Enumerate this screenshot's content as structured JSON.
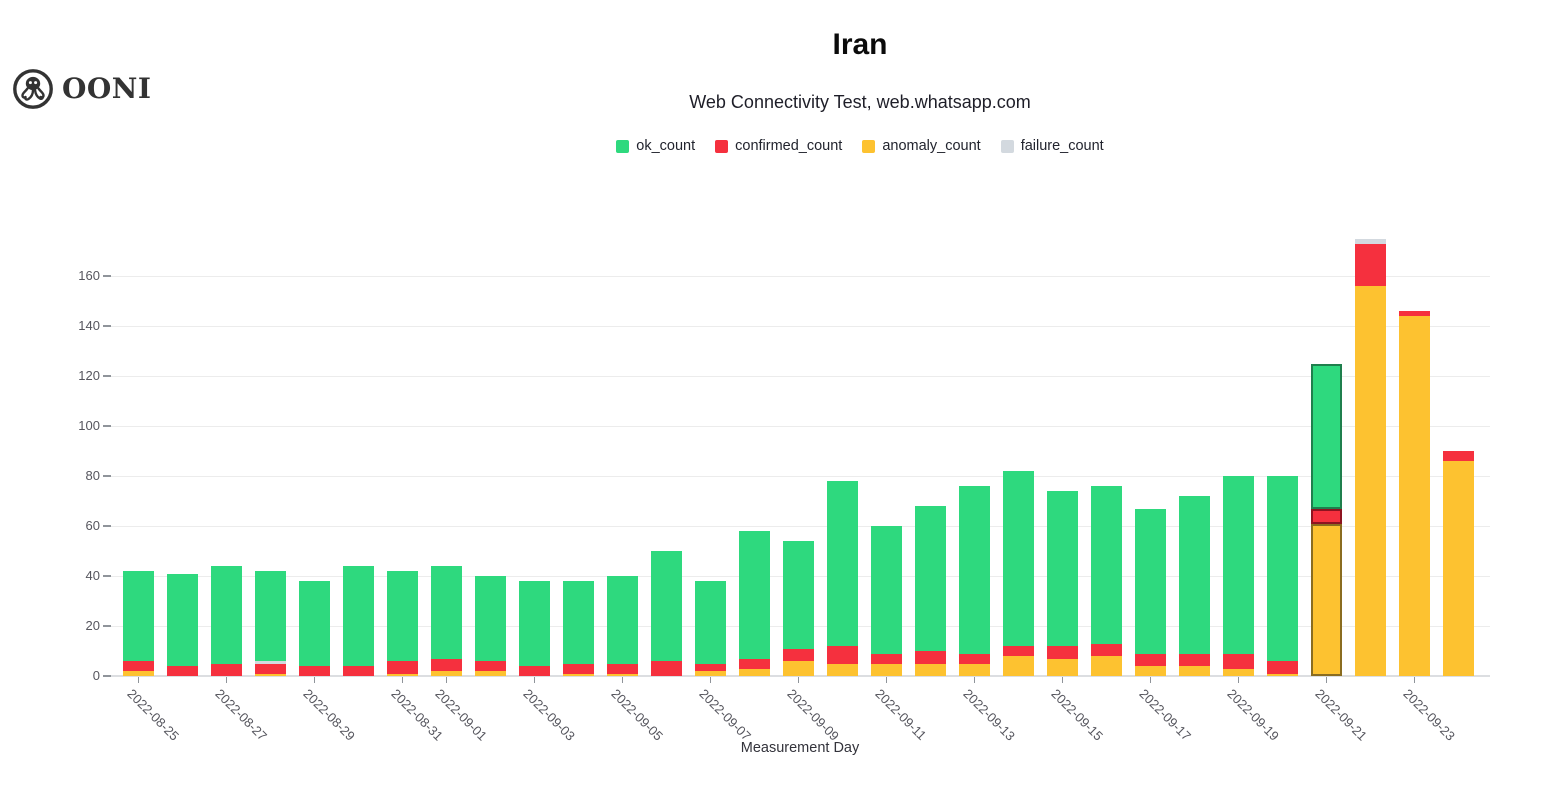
{
  "header": {
    "brand": "OONI",
    "title": "Iran",
    "subtitle": "Web Connectivity Test, web.whatsapp.com"
  },
  "chart_data": {
    "type": "bar",
    "stacked": true,
    "title": "Iran",
    "subtitle": "Web Connectivity Test, web.whatsapp.com",
    "xlabel": "Measurement Day",
    "ylabel": "",
    "ylim": [
      0,
      180
    ],
    "yticks": [
      0,
      20,
      40,
      60,
      80,
      100,
      120,
      140,
      160
    ],
    "grid": true,
    "legend_position": "top",
    "categories": [
      "2022-08-25",
      "2022-08-26",
      "2022-08-27",
      "2022-08-28",
      "2022-08-29",
      "2022-08-30",
      "2022-08-31",
      "2022-09-01",
      "2022-09-02",
      "2022-09-03",
      "2022-09-04",
      "2022-09-05",
      "2022-09-06",
      "2022-09-07",
      "2022-09-08",
      "2022-09-09",
      "2022-09-10",
      "2022-09-11",
      "2022-09-12",
      "2022-09-13",
      "2022-09-14",
      "2022-09-15",
      "2022-09-16",
      "2022-09-17",
      "2022-09-18",
      "2022-09-19",
      "2022-09-20",
      "2022-09-21",
      "2022-09-22",
      "2022-09-23",
      "2022-09-24"
    ],
    "x_ticks": [
      {
        "index": 0,
        "label": "2022-08-25"
      },
      {
        "index": 2,
        "label": "2022-08-27"
      },
      {
        "index": 4,
        "label": "2022-08-29"
      },
      {
        "index": 6,
        "label": "2022-08-31"
      },
      {
        "index": 7,
        "label": "2022-09-01"
      },
      {
        "index": 9,
        "label": "2022-09-03"
      },
      {
        "index": 11,
        "label": "2022-09-05"
      },
      {
        "index": 13,
        "label": "2022-09-07"
      },
      {
        "index": 15,
        "label": "2022-09-09"
      },
      {
        "index": 17,
        "label": "2022-09-11"
      },
      {
        "index": 19,
        "label": "2022-09-13"
      },
      {
        "index": 21,
        "label": "2022-09-15"
      },
      {
        "index": 23,
        "label": "2022-09-17"
      },
      {
        "index": 25,
        "label": "2022-09-19"
      },
      {
        "index": 27,
        "label": "2022-09-21"
      },
      {
        "index": 29,
        "label": "2022-09-23"
      }
    ],
    "stack_order": [
      "anomaly_count",
      "confirmed_count",
      "failure_count",
      "ok_count"
    ],
    "series": [
      {
        "name": "ok_count",
        "color": "#2ed97e",
        "values": [
          36,
          37,
          39,
          36,
          34,
          40,
          36,
          37,
          34,
          34,
          33,
          35,
          44,
          33,
          51,
          43,
          66,
          51,
          58,
          67,
          70,
          62,
          63,
          58,
          63,
          71,
          74,
          58,
          0,
          0,
          0
        ]
      },
      {
        "name": "confirmed_count",
        "color": "#f5303e",
        "values": [
          4,
          4,
          5,
          4,
          4,
          4,
          5,
          5,
          4,
          4,
          4,
          4,
          6,
          3,
          4,
          5,
          7,
          4,
          5,
          4,
          4,
          5,
          5,
          5,
          5,
          6,
          5,
          6,
          17,
          2,
          4
        ]
      },
      {
        "name": "anomaly_count",
        "color": "#fdc230",
        "values": [
          2,
          0,
          0,
          1,
          0,
          0,
          1,
          2,
          2,
          0,
          1,
          1,
          0,
          2,
          3,
          6,
          5,
          5,
          5,
          5,
          8,
          7,
          8,
          4,
          4,
          3,
          1,
          61,
          156,
          144,
          86
        ]
      },
      {
        "name": "failure_count",
        "color": "#d3d9df",
        "values": [
          0,
          0,
          0,
          1,
          0,
          0,
          0,
          0,
          0,
          0,
          0,
          0,
          0,
          0,
          0,
          0,
          0,
          0,
          0,
          0,
          0,
          0,
          0,
          0,
          0,
          0,
          0,
          0,
          2,
          0,
          0
        ]
      }
    ],
    "highlighted_category": "2022-09-21",
    "highlighted_index": 27,
    "highlight_borders": {
      "ok_count": "#1f7f4d",
      "confirmed_count": "#8d1420",
      "anomaly_count": "#8a6c20",
      "failure_count": "#7c848b"
    }
  }
}
